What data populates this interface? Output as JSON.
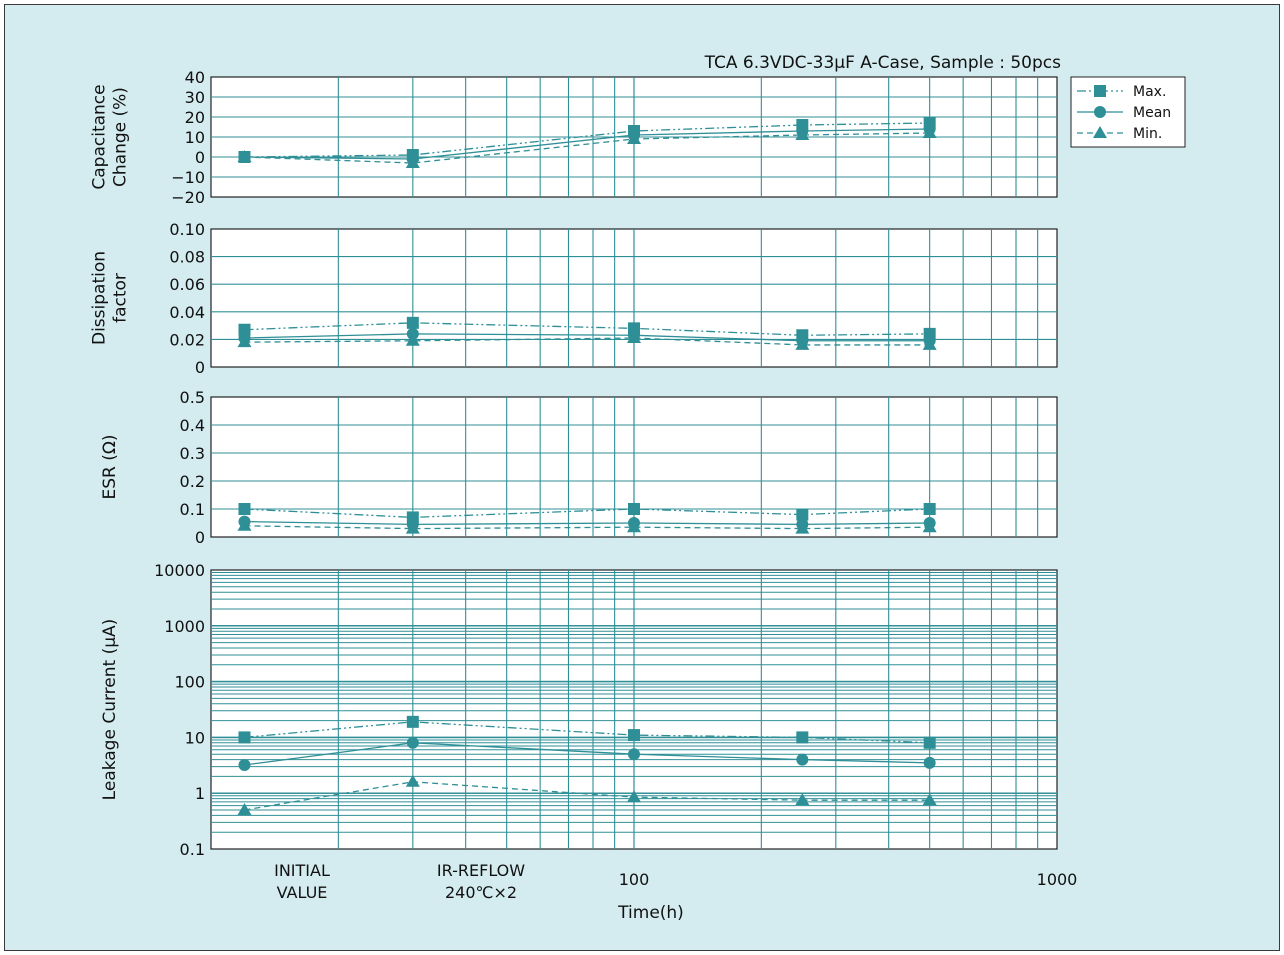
{
  "chart_title": "TCA 6.3VDC-33μF A-Case, Sample : 50pcs",
  "x_axis": {
    "label": "Time(h)",
    "category_labels": [
      {
        "lines": [
          "INITIAL",
          "VALUE"
        ]
      },
      {
        "lines": [
          "IR-REFLOW",
          "240℃×2"
        ]
      }
    ],
    "tick_labels": [
      "100",
      "1000"
    ],
    "scale": "log",
    "range": [
      10,
      1000
    ]
  },
  "legend": {
    "placement": "top-right",
    "entries": [
      "Max.",
      "Mean",
      "Min."
    ]
  },
  "colors": {
    "series": "#2f8f96",
    "grid": "#2f8f96",
    "background": "#d4ecf0",
    "plot": "#ffffff"
  },
  "chart_data": [
    {
      "type": "line",
      "ylabel": [
        "Capacitance",
        "Change (%)"
      ],
      "ylim": [
        -20,
        40
      ],
      "yticks": [
        -20,
        -10,
        0,
        10,
        20,
        30,
        40
      ],
      "ytick_labels": [
        "−20",
        "−10",
        "0",
        "10",
        "20",
        "30",
        "40"
      ],
      "yscale": "linear",
      "x": [
        "INITIAL VALUE",
        "IR-REFLOW 240℃×2",
        100,
        250,
        500
      ],
      "series": [
        {
          "name": "Max.",
          "values": [
            0,
            1,
            13,
            16,
            17
          ]
        },
        {
          "name": "Mean",
          "values": [
            0,
            -1,
            11,
            13,
            14
          ]
        },
        {
          "name": "Min.",
          "values": [
            0,
            -3,
            9,
            11,
            12
          ]
        }
      ]
    },
    {
      "type": "line",
      "ylabel": [
        "Dissipation",
        "factor"
      ],
      "ylim": [
        0,
        0.1
      ],
      "yticks": [
        0,
        0.02,
        0.04,
        0.06,
        0.08,
        0.1
      ],
      "ytick_labels": [
        "0",
        "0.02",
        "0.04",
        "0.06",
        "0.08",
        "0.10"
      ],
      "yscale": "linear",
      "x": [
        "INITIAL VALUE",
        "IR-REFLOW 240℃×2",
        100,
        250,
        500
      ],
      "series": [
        {
          "name": "Max.",
          "values": [
            0.027,
            0.032,
            0.028,
            0.023,
            0.024
          ]
        },
        {
          "name": "Mean",
          "values": [
            0.021,
            0.024,
            0.023,
            0.019,
            0.019
          ]
        },
        {
          "name": "Min.",
          "values": [
            0.018,
            0.019,
            0.021,
            0.016,
            0.016
          ]
        }
      ]
    },
    {
      "type": "line",
      "ylabel": [
        "ESR (Ω)"
      ],
      "ylim": [
        0,
        0.5
      ],
      "yticks": [
        0,
        0.1,
        0.2,
        0.3,
        0.4,
        0.5
      ],
      "ytick_labels": [
        "0",
        "0.1",
        "0.2",
        "0.3",
        "0.4",
        "0.5"
      ],
      "yscale": "linear",
      "x": [
        "INITIAL VALUE",
        "IR-REFLOW 240℃×2",
        100,
        250,
        500
      ],
      "series": [
        {
          "name": "Max.",
          "values": [
            0.1,
            0.07,
            0.1,
            0.08,
            0.1
          ]
        },
        {
          "name": "Mean",
          "values": [
            0.055,
            0.045,
            0.05,
            0.045,
            0.05
          ]
        },
        {
          "name": "Min.",
          "values": [
            0.04,
            0.03,
            0.035,
            0.03,
            0.035
          ]
        }
      ]
    },
    {
      "type": "line",
      "ylabel": [
        "Leakage  Current (μA)"
      ],
      "ylim": [
        0.1,
        10000
      ],
      "yticks": [
        0.1,
        1,
        10,
        100,
        1000,
        10000
      ],
      "ytick_labels": [
        "0.1",
        "1",
        "10",
        "100",
        "1000",
        "10000"
      ],
      "yscale": "log",
      "x": [
        "INITIAL VALUE",
        "IR-REFLOW 240℃×2",
        100,
        250,
        500
      ],
      "series": [
        {
          "name": "Max.",
          "values": [
            10,
            19,
            11,
            10,
            8
          ]
        },
        {
          "name": "Mean",
          "values": [
            3.2,
            8,
            5,
            4,
            3.5
          ]
        },
        {
          "name": "Min.",
          "values": [
            0.5,
            1.6,
            0.85,
            0.75,
            0.75
          ]
        }
      ]
    }
  ]
}
